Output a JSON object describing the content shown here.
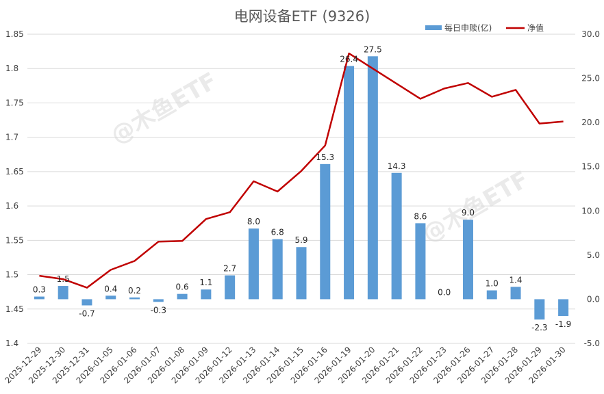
{
  "chart_data": {
    "type": "bar+line",
    "title": "电网设备ETF (9326)",
    "categories": [
      "2025-12-29",
      "2025-12-30",
      "2025-12-31",
      "2026-01-05",
      "2026-01-06",
      "2026-01-07",
      "2026-01-08",
      "2026-01-09",
      "2026-01-12",
      "2026-01-13",
      "2026-01-14",
      "2026-01-15",
      "2026-01-16",
      "2026-01-19",
      "2026-01-20",
      "2026-01-21",
      "2026-01-22",
      "2026-01-23",
      "2026-01-26",
      "2026-01-27",
      "2026-01-28",
      "2026-01-29",
      "2026-01-30"
    ],
    "bar_series": {
      "name": "每日申赎(亿)",
      "color": "#5b9bd5",
      "axis": "right",
      "values": [
        0.3,
        1.5,
        -0.7,
        0.4,
        0.2,
        -0.3,
        0.6,
        1.1,
        2.7,
        8.0,
        6.8,
        5.9,
        15.3,
        26.4,
        27.5,
        14.3,
        8.6,
        0.0,
        9.0,
        1.0,
        1.4,
        -2.3,
        -1.9
      ],
      "labels": [
        "0.3",
        "1.5",
        "-0.7",
        "0.4",
        "0.2",
        "-0.3",
        "0.6",
        "1.1",
        "2.7",
        "8.0",
        "6.8",
        "5.9",
        "15.3",
        "26.4",
        "27.5",
        "14.3",
        "8.6",
        "0.0",
        "9.0",
        "1.0",
        "1.4",
        "-2.3",
        "-1.9"
      ]
    },
    "line_series": {
      "name": "净值",
      "color": "#c00000",
      "axis": "left",
      "values": [
        1.4985,
        1.4935,
        1.481,
        1.507,
        1.52,
        1.548,
        1.549,
        1.581,
        1.591,
        1.636,
        1.621,
        1.651,
        1.688,
        1.822,
        1.8,
        1.778,
        1.756,
        1.771,
        1.779,
        1.759,
        1.769,
        1.72,
        1.723
      ]
    },
    "y_left": {
      "min": 1.4,
      "max": 1.85,
      "step": 0.05,
      "ticks": [
        "1.4",
        "1.45",
        "1.5",
        "1.55",
        "1.6",
        "1.65",
        "1.7",
        "1.75",
        "1.8",
        "1.85"
      ]
    },
    "y_right": {
      "min": -5,
      "max": 30,
      "step": 5,
      "ticks": [
        "-5.0",
        "0.0",
        "5.0",
        "10.0",
        "15.0",
        "20.0",
        "25.0",
        "30.0"
      ]
    },
    "grid": true,
    "legend_position": "top-right",
    "watermark": "@木鱼ETF"
  }
}
